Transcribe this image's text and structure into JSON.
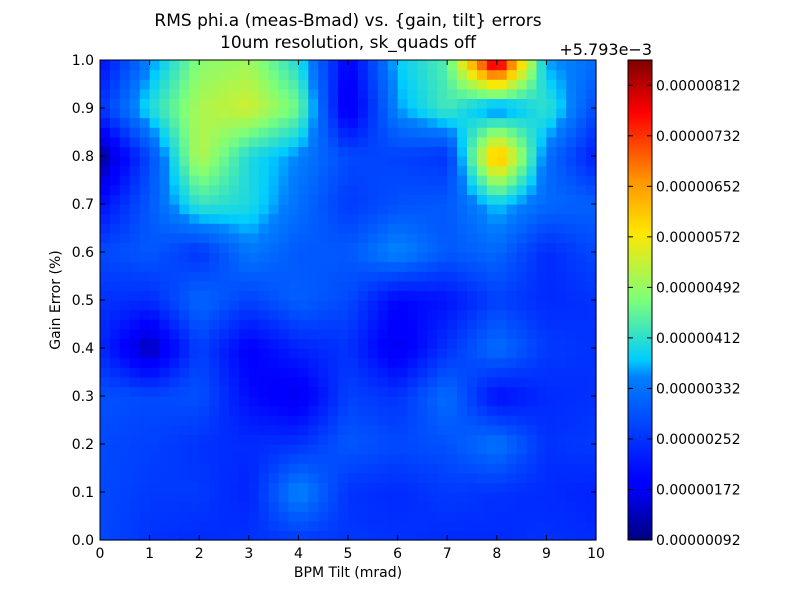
{
  "chart_data": {
    "type": "heatmap",
    "title_line1": "RMS phi.a (meas-Bmad) vs. {gain, tilt} errors",
    "title_line2": "10um resolution, sk_quads off",
    "xlabel": "BPM Tilt (mrad)",
    "ylabel": "Gain Error (%)",
    "x": [
      0,
      1,
      2,
      3,
      4,
      5,
      6,
      7,
      8,
      9,
      10
    ],
    "y": [
      0.0,
      0.1,
      0.2,
      0.3,
      0.4,
      0.5,
      0.6,
      0.7,
      0.8,
      0.9,
      1.0
    ],
    "xlim": [
      0,
      10
    ],
    "ylim": [
      0.0,
      1.0
    ],
    "x_ticks": [
      "0",
      "1",
      "2",
      "3",
      "4",
      "5",
      "6",
      "7",
      "8",
      "9",
      "10"
    ],
    "y_ticks": [
      "0.0",
      "0.1",
      "0.2",
      "0.3",
      "0.4",
      "0.5",
      "0.6",
      "0.7",
      "0.8",
      "0.9",
      "1.0"
    ],
    "colorbar": {
      "offset_label": "+5.793e−3",
      "range": [
        9.2e-07,
        8.52e-06
      ],
      "ticks": [
        9.2e-07,
        1.72e-06,
        2.52e-06,
        3.32e-06,
        4.12e-06,
        4.92e-06,
        5.72e-06,
        6.52e-06,
        7.32e-06,
        8.12e-06
      ],
      "tick_labels": [
        "0.00000092",
        "0.00000172",
        "0.00000252",
        "0.00000332",
        "0.00000412",
        "0.00000492",
        "0.00000572",
        "0.00000652",
        "0.00000732",
        "0.00000812"
      ],
      "colormap": "jet"
    },
    "z_units": "offset from 5.793e-3",
    "z": [
      [
        2.8e-06,
        2.5e-06,
        2.4e-06,
        2.5e-06,
        2.6e-06,
        2.55e-06,
        2.5e-06,
        2.4e-06,
        2.4e-06,
        2.5e-06,
        2.4e-06
      ],
      [
        2.8e-06,
        2.6e-06,
        2.6e-06,
        2.3e-06,
        3.6e-06,
        2.5e-06,
        2.4e-06,
        2.6e-06,
        2.5e-06,
        2.4e-06,
        2.3e-06
      ],
      [
        2.8e-06,
        2.7e-06,
        2.5e-06,
        2.4e-06,
        2.5e-06,
        3e-06,
        2.8e-06,
        2.9e-06,
        3.4e-06,
        2.5e-06,
        2.6e-06
      ],
      [
        2.9e-06,
        2.8e-06,
        2.9e-06,
        2e-06,
        1.6e-06,
        2.7e-06,
        2.5e-06,
        3.3e-06,
        2e-06,
        2.4e-06,
        2.5e-06
      ],
      [
        2.4e-06,
        1.2e-06,
        2.7e-06,
        1.8e-06,
        2.3e-06,
        2.5e-06,
        1.6e-06,
        2.5e-06,
        3.3e-06,
        2.6e-06,
        2.5e-06
      ],
      [
        2.5e-06,
        2.4e-06,
        3.2e-06,
        2.7e-06,
        3.1e-06,
        2.8e-06,
        1.9e-06,
        2.1e-06,
        2.7e-06,
        2.4e-06,
        2.5e-06
      ],
      [
        2.8e-06,
        3e-06,
        2.5e-06,
        3.4e-06,
        3e-06,
        3e-06,
        3.6e-06,
        3e-06,
        3.2e-06,
        2.4e-06,
        2.8e-06
      ],
      [
        2e-06,
        3e-06,
        4.2e-06,
        4e-06,
        3.3e-06,
        2.6e-06,
        2.9e-06,
        3e-06,
        3.8e-06,
        3.2e-06,
        3.1e-06
      ],
      [
        1e-06,
        2.8e-06,
        5.2e-06,
        4e-06,
        3.5e-06,
        2.8e-06,
        2.7e-06,
        2.5e-06,
        6.5e-06,
        3.3e-06,
        2.2e-06
      ],
      [
        2.5e-06,
        4e-06,
        5.1e-06,
        5.4e-06,
        4.6e-06,
        1.5e-06,
        3.6e-06,
        4.3e-06,
        3.3e-06,
        4.2e-06,
        2.8e-06
      ],
      [
        2e-06,
        3.5e-06,
        4.8e-06,
        5e-06,
        4e-06,
        1.8e-06,
        3.8e-06,
        4.4e-06,
        8.5e-06,
        3.6e-06,
        3.3e-06
      ]
    ]
  }
}
